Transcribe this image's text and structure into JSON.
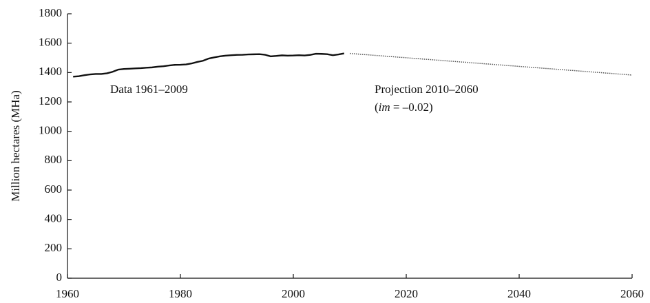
{
  "chart_data": {
    "type": "line",
    "ylabel": "Million hectares (MHa)",
    "xlim": [
      1960,
      2060
    ],
    "xticks": [
      1960,
      1980,
      2000,
      2020,
      2040,
      2060
    ],
    "ylim": [
      0,
      1800
    ],
    "yticks": [
      0,
      200,
      400,
      600,
      800,
      1000,
      1200,
      1400,
      1600,
      1800
    ],
    "grid": false,
    "series": [
      {
        "name": "Data 1961–2009",
        "color": "#111111",
        "style": "solid",
        "x": [
          1961,
          1962,
          1963,
          1964,
          1965,
          1966,
          1967,
          1968,
          1969,
          1970,
          1971,
          1972,
          1973,
          1974,
          1975,
          1976,
          1977,
          1978,
          1979,
          1980,
          1981,
          1982,
          1983,
          1984,
          1985,
          1986,
          1987,
          1988,
          1989,
          1990,
          1991,
          1992,
          1993,
          1994,
          1995,
          1996,
          1997,
          1998,
          1999,
          2000,
          2001,
          2002,
          2003,
          2004,
          2005,
          2006,
          2007,
          2008,
          2009
        ],
        "values": [
          1372,
          1375,
          1382,
          1387,
          1390,
          1390,
          1395,
          1405,
          1420,
          1424,
          1426,
          1428,
          1430,
          1433,
          1435,
          1440,
          1443,
          1448,
          1452,
          1453,
          1455,
          1462,
          1472,
          1480,
          1495,
          1503,
          1510,
          1515,
          1518,
          1520,
          1521,
          1523,
          1524,
          1525,
          1521,
          1510,
          1513,
          1517,
          1515,
          1516,
          1518,
          1516,
          1520,
          1528,
          1527,
          1525,
          1518,
          1523,
          1530
        ]
      },
      {
        "name": "Projection 2010–2060",
        "color": "#555555",
        "style": "dotted",
        "x": [
          2010,
          2060
        ],
        "values": [
          1530,
          1383
        ],
        "note": [
          "(",
          "im",
          " = –0.02)"
        ]
      }
    ]
  }
}
